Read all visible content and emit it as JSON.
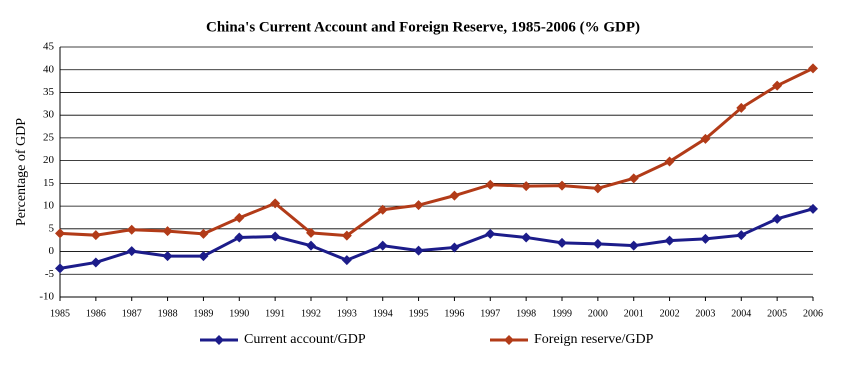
{
  "chart_data": {
    "type": "line",
    "title": "China's Current Account and Foreign Reserve, 1985-2006 (% GDP)",
    "y_label": "Percentage of GDP",
    "categories": [
      "1985",
      "1986",
      "1987",
      "1988",
      "1989",
      "1990",
      "1991",
      "1992",
      "1993",
      "1994",
      "1995",
      "1996",
      "1997",
      "1998",
      "1999",
      "2000",
      "2001",
      "2002",
      "2003",
      "2004",
      "2005",
      "2006"
    ],
    "series": [
      {
        "name": "Current account/GDP",
        "color": "#1c1c8a",
        "values": [
          -3.7,
          -2.4,
          0.1,
          -1.0,
          -1.0,
          3.1,
          3.3,
          1.3,
          -1.9,
          1.3,
          0.2,
          0.9,
          3.9,
          3.1,
          1.9,
          1.7,
          1.3,
          2.4,
          2.8,
          3.6,
          7.2,
          9.4
        ]
      },
      {
        "name": "Foreign reserve/GDP",
        "color": "#b23b18",
        "values": [
          4.0,
          3.6,
          4.8,
          4.5,
          3.9,
          7.4,
          10.6,
          4.1,
          3.5,
          9.2,
          10.2,
          12.3,
          14.7,
          14.4,
          14.5,
          13.9,
          16.1,
          19.8,
          24.8,
          31.6,
          36.5,
          40.3
        ]
      }
    ],
    "ylim": [
      -10,
      45
    ],
    "yticks": [
      -10,
      -5,
      0,
      5,
      10,
      15,
      20,
      25,
      30,
      35,
      40,
      45
    ],
    "grid": true
  }
}
